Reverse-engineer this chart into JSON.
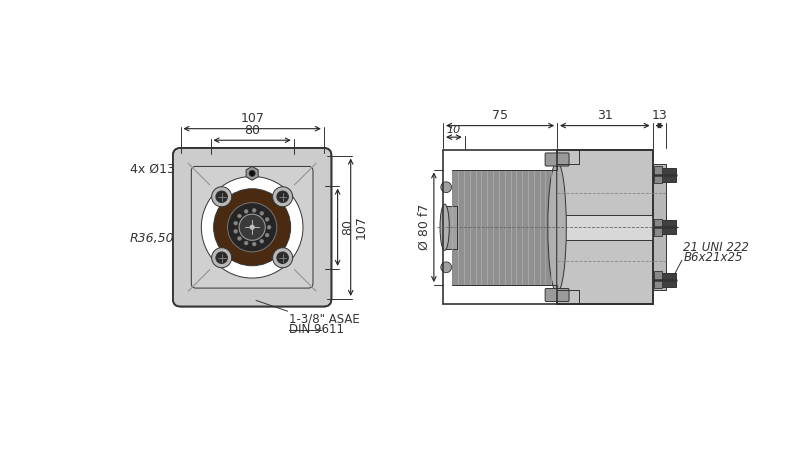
{
  "bg_color": "#ffffff",
  "line_color": "#333333",
  "gray_fill": "#b8b8b8",
  "dark_gray": "#555555",
  "light_gray": "#cccccc",
  "brown_fill": "#4a2a10",
  "annotations": {
    "dim_107_top": "107",
    "dim_80_top": "80",
    "dim_4x_d13": "4x Ø13",
    "dim_R36_50": "R36,50",
    "dim_80_right": "80",
    "dim_107_right": "107",
    "dim_asae_line1": "1-3/8\" ASAE",
    "dim_asae_line2": "DIN 9611",
    "dim_75": "75",
    "dim_31": "31",
    "dim_13": "13",
    "dim_10": "10",
    "dim_d80f7": "Ø 80 f7",
    "dim_uni_line1": "21 UNI 222",
    "dim_uni_line2": "B6x21x25"
  }
}
